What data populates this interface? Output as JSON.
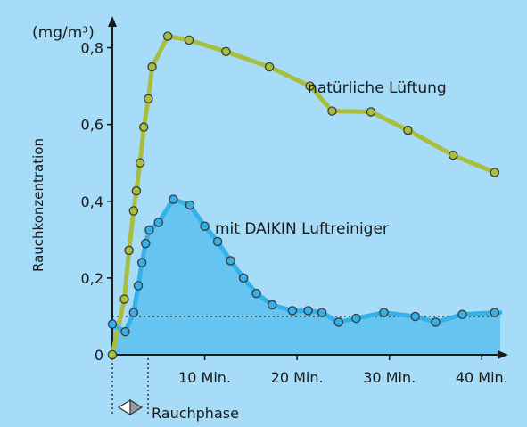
{
  "chart_data": {
    "type": "line",
    "unit_label": "(mg/m³)",
    "ylabel": "Rauchkonzentration",
    "xlabel": "",
    "xlim": [
      0,
      42
    ],
    "ylim": [
      0,
      0.85
    ],
    "y_ticks": [
      {
        "value": 0,
        "label": "0"
      },
      {
        "value": 0.2,
        "label": "0,2"
      },
      {
        "value": 0.4,
        "label": "0,4"
      },
      {
        "value": 0.6,
        "label": "0,6"
      },
      {
        "value": 0.8,
        "label": "0,8"
      }
    ],
    "x_ticks": [
      {
        "value": 10,
        "label": "10 Min."
      },
      {
        "value": 20,
        "label": "20 Min."
      },
      {
        "value": 30,
        "label": "30 Min."
      },
      {
        "value": 40,
        "label": "40 Min."
      }
    ],
    "grid": false,
    "background_color": "#a6dcf7",
    "series": [
      {
        "name": "natürliche Lüftung",
        "color": "#a9be3e",
        "marker_color": "#a9be3e",
        "filled": false,
        "x": [
          0,
          1.3,
          1.8,
          2.3,
          2.6,
          3.0,
          3.4,
          3.9,
          4.3,
          6.0,
          8.3,
          12.3,
          17.0,
          21.4,
          23.8,
          28.0,
          32.0,
          36.9,
          41.4
        ],
        "y": [
          0,
          0.145,
          0.272,
          0.375,
          0.427,
          0.5,
          0.593,
          0.667,
          0.75,
          0.83,
          0.82,
          0.79,
          0.75,
          0.7,
          0.635,
          0.633,
          0.585,
          0.52,
          0.475
        ]
      },
      {
        "name": "mit DAIKIN Luftreiniger",
        "color": "#35b0e8",
        "marker_color": "#35b0e8",
        "filled": true,
        "fill_color": "#66c4f0",
        "x": [
          0,
          1.4,
          2.3,
          2.8,
          3.2,
          3.6,
          4.0,
          5.0,
          6.6,
          8.4,
          10.0,
          11.4,
          12.8,
          14.2,
          15.6,
          17.3,
          19.5,
          21.2,
          22.7,
          24.5,
          26.4,
          29.4,
          32.8,
          35.0,
          37.9,
          41.4
        ],
        "y": [
          0.08,
          0.06,
          0.11,
          0.18,
          0.24,
          0.29,
          0.325,
          0.345,
          0.405,
          0.39,
          0.335,
          0.295,
          0.245,
          0.2,
          0.16,
          0.13,
          0.115,
          0.115,
          0.11,
          0.085,
          0.095,
          0.11,
          0.1,
          0.085,
          0.105,
          0.11
        ]
      }
    ],
    "reference_line": {
      "y": 0.1,
      "style": "dotted",
      "x_start": 0,
      "x_end": 42
    },
    "annotations": [
      {
        "text": "natürliche Lüftung",
        "series": 0
      },
      {
        "text": "mit DAIKIN Luftreiniger",
        "series": 1
      },
      {
        "text": "Rauchphase",
        "marks_x_range": [
          0,
          4.3
        ]
      }
    ]
  }
}
